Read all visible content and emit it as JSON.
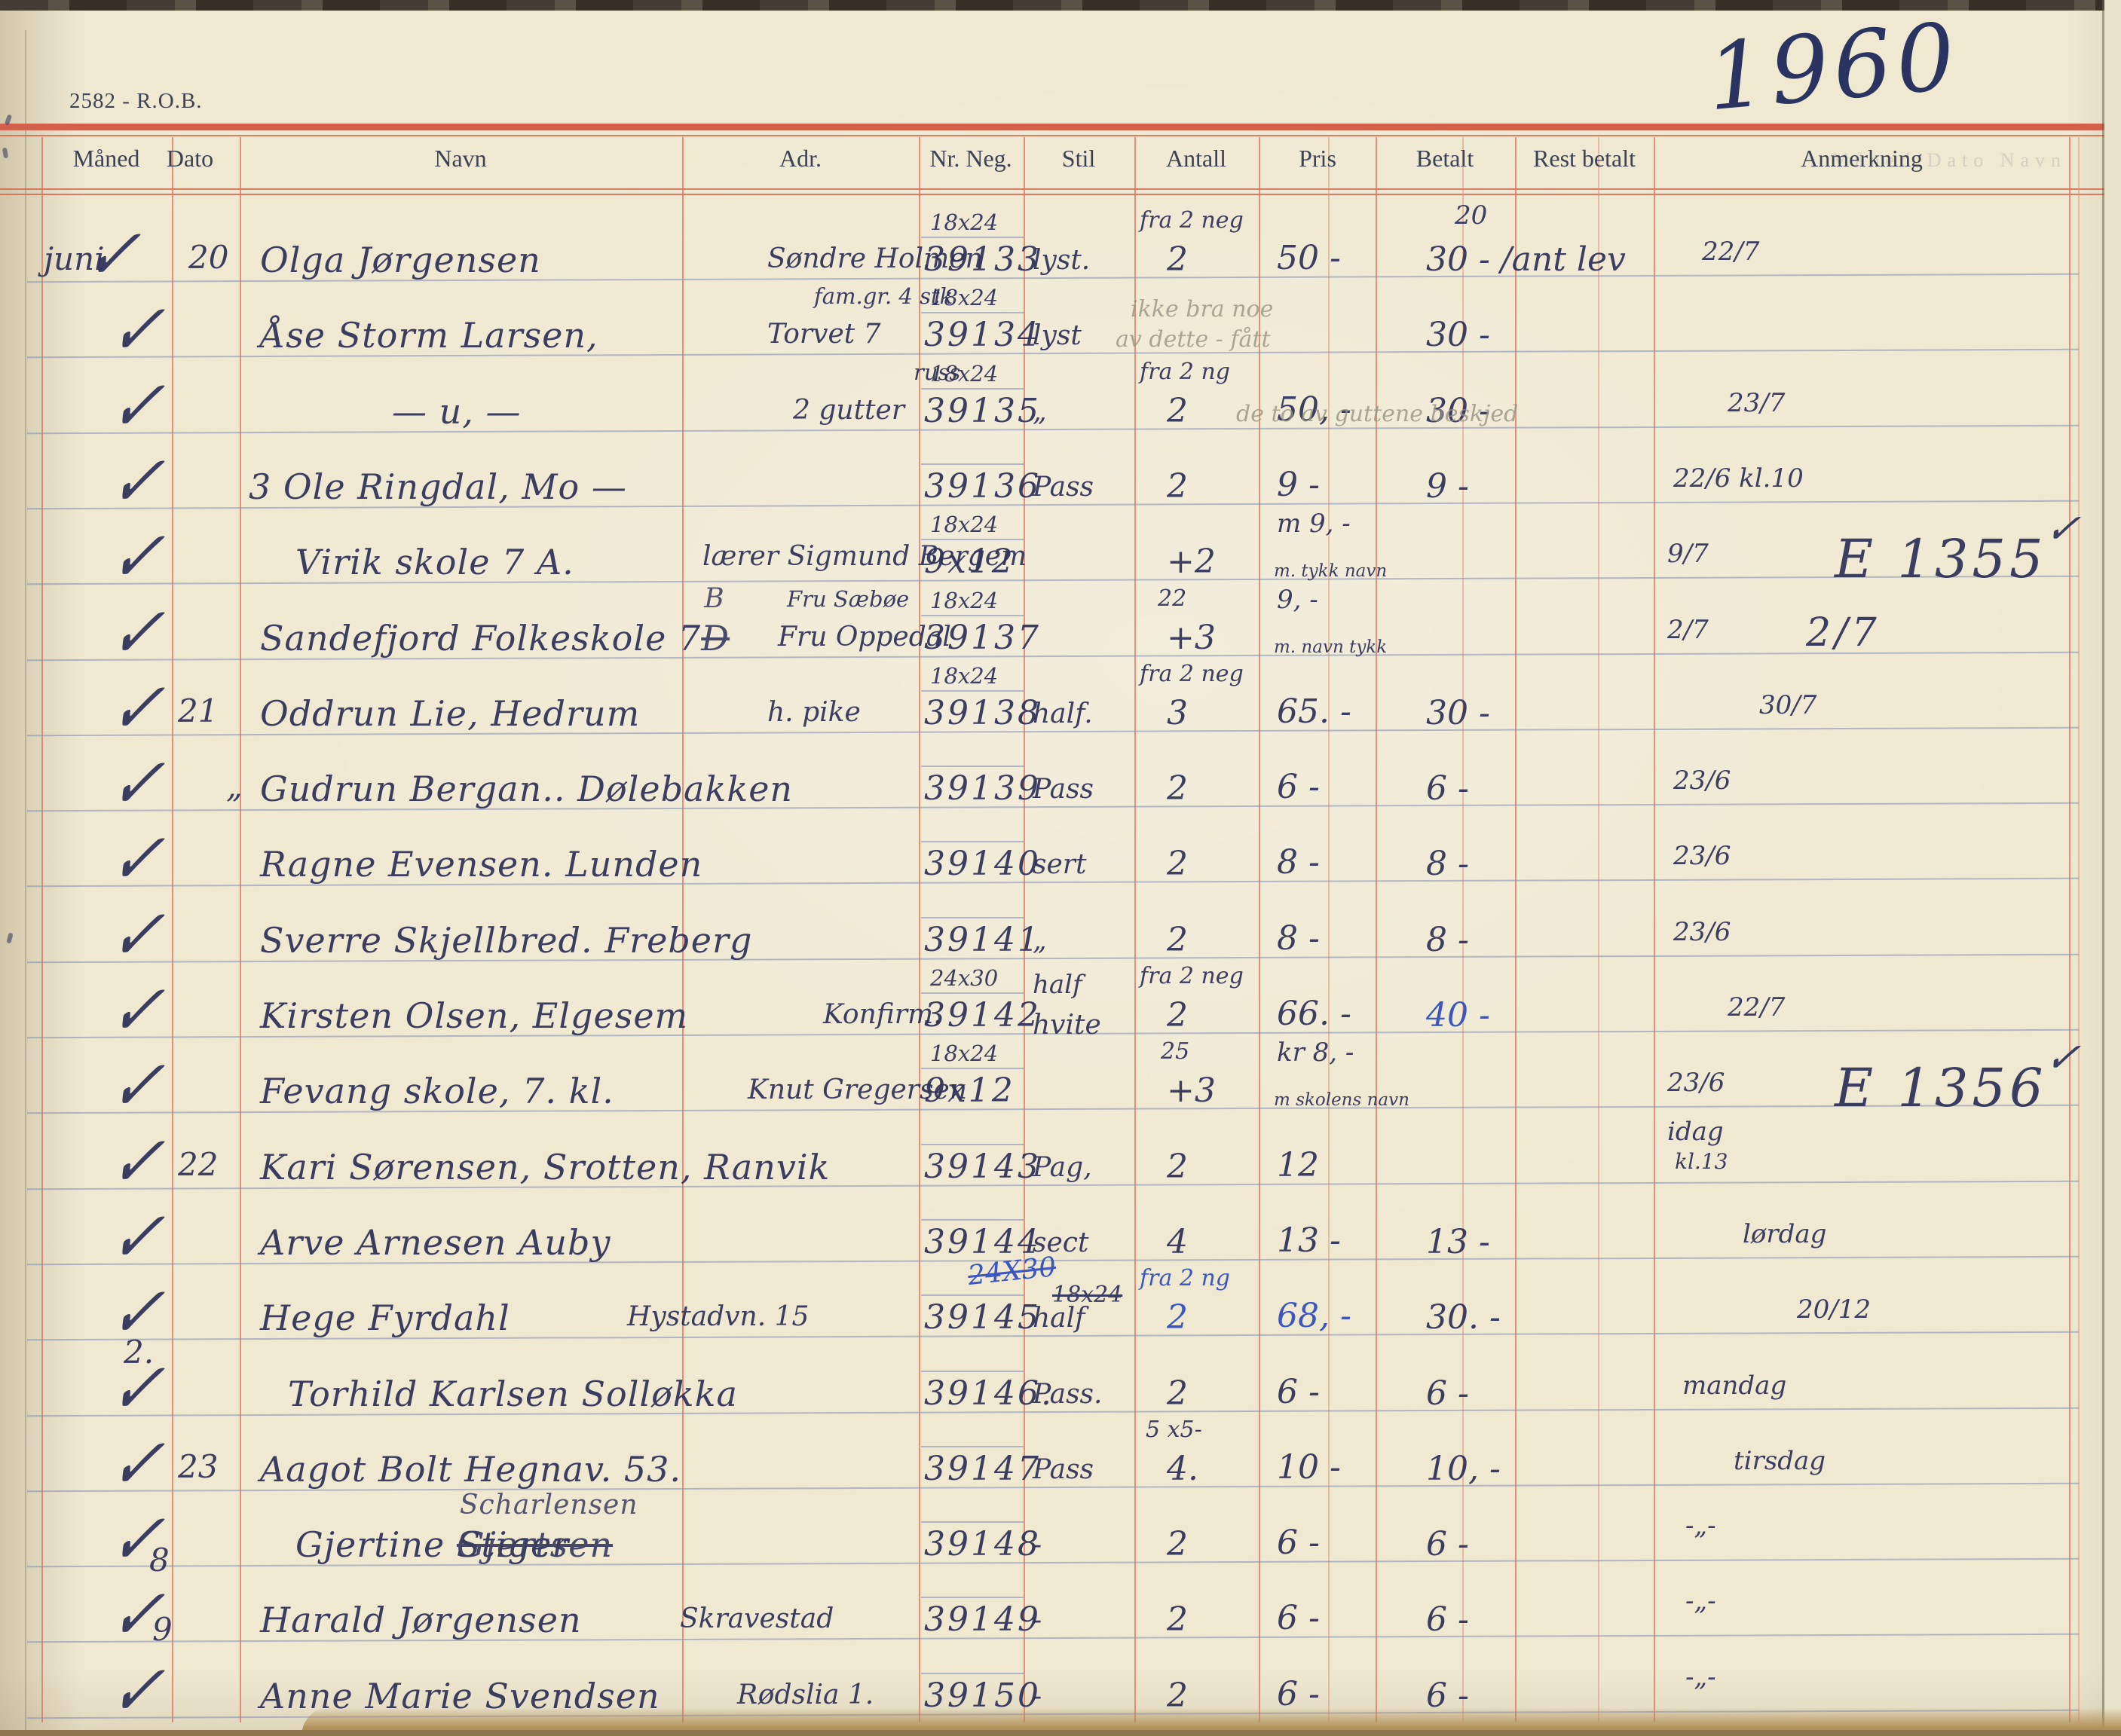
{
  "page": {
    "book_code": "2582 - R.O.B.",
    "year": "1960",
    "ghost": "Måned  Dato   Navn"
  },
  "header": {
    "columns": [
      "Måned",
      "Dato",
      "Navn",
      "Adr.",
      "Nr. Neg.",
      "Stil",
      "Antall",
      "Pris",
      "Betalt",
      "Rest betalt",
      "Anmerkning"
    ]
  },
  "colors": {
    "ink_main": "#2e3158",
    "ink_blue": "#2f4bc0",
    "pencil": "#97948a",
    "rule_red": "#d2604a",
    "rule_blue": "#7d8caf",
    "paper": "#efe9d2"
  },
  "rows": [
    {
      "check": "✓",
      "maaned": "juni",
      "dato": "20",
      "navn": "Olga Jørgensen",
      "adr": "Søndre Holmen",
      "neg_top": "18x24",
      "neg": "39133",
      "stil": "lyst.",
      "antall_top": "fra 2 neg",
      "antall": "2",
      "pris": "50  -",
      "betalt_top": "20",
      "betalt": "30  - /ant lev",
      "anm": "22/7"
    },
    {
      "check": "✓",
      "navn": "Åse Storm Larsen,",
      "adr_top": "fam.gr. 4 stk",
      "adr": "Torvet 7",
      "neg_top": "18x24",
      "neg": "39134",
      "stil": "lyst",
      "pencil": "ikke bra noe",
      "pencil2": "av dette - fått",
      "betalt": "30  -"
    },
    {
      "check": "✓",
      "navn": "— u, —",
      "adr_top": "russ",
      "adr": "2 gutter",
      "neg_top": "18x24",
      "neg": "39135",
      "stil": "„",
      "antall_top": "fra 2 ng",
      "antall": "2",
      "pris": "50,  -",
      "betalt": "30  -",
      "pencil": "de to av guttene beskjed",
      "anm": "23/7"
    },
    {
      "check": "✓",
      "navn": "3 Ole Ringdal, Mo —",
      "neg": "39136",
      "stil": "Pass",
      "antall": "2",
      "pris": "9  -",
      "betalt": "9  -",
      "anm": "22/6 kl.10"
    },
    {
      "check": "✓",
      "navn": "Virik skole 7 A.",
      "adr": "lærer Sigmund Bergem",
      "neg_top": "18x24",
      "neg": "9x12",
      "antall": "+2",
      "pris_top": "m 9, -",
      "pris_small": "m. tykk navn",
      "anm": "9/7",
      "anm_big": "E 1355",
      "margin_check": "✓"
    },
    {
      "check": "✓",
      "navn": "Sandefjord Folkeskole 7",
      "navn_crossed": "D",
      "navn_over": "B",
      "adr_top": "Fru Sæbøe",
      "adr": "Fru Oppedal",
      "neg_top": "18x24",
      "neg": "39137",
      "antall_top": "22",
      "antall": "+3",
      "pris_top": "9,  -",
      "pris_small": "m. navn tykk",
      "anm": "2/7",
      "anm_big": "2/7"
    },
    {
      "check": "✓",
      "dato": "21",
      "navn": "Oddrun Lie, Hedrum",
      "adr": "h. pike",
      "neg_top": "18x24",
      "neg": "39138",
      "stil": "half.",
      "antall_top": "fra 2 neg",
      "antall": "3",
      "pris": "65.  -",
      "betalt": "30  -",
      "anm": "30/7"
    },
    {
      "check": "✓",
      "dato": "„",
      "navn": "Gudrun Bergan.. Dølebakken",
      "neg": "39139",
      "stil": "Pass",
      "antall": "2",
      "pris": "6  -",
      "betalt": "6  -",
      "anm": "23/6"
    },
    {
      "check": "✓",
      "navn": "Ragne Evensen. Lunden",
      "neg": "39140",
      "stil": "sert",
      "antall": "2",
      "pris": "8  -",
      "betalt": "8  -",
      "anm": "23/6"
    },
    {
      "check": "✓",
      "navn": "Sverre Skjellbred. Freberg",
      "neg": "39141",
      "stil": "„",
      "antall": "2",
      "pris": "8  -",
      "betalt": "8  -",
      "anm": "23/6"
    },
    {
      "check": "✓",
      "navn": "Kirsten Olsen, Elgesem",
      "adr": "Konfirm.",
      "neg_top": "24x30",
      "neg": "39142",
      "stil_top": "half",
      "stil": "hvite",
      "antall_top": "fra 2 neg",
      "antall": "2",
      "pris": "66.  -",
      "betalt_blue": "40  -",
      "anm": "22/7"
    },
    {
      "check": "✓",
      "navn": "Fevang skole, 7. kl.",
      "adr": "Knut Gregersen",
      "neg_top": "18x24",
      "neg": "9x12",
      "antall_top": "25",
      "antall": "+3",
      "pris_top": "kr 8, -",
      "pris_small": "m skolens navn",
      "anm": "23/6",
      "anm_big": "E 1356",
      "margin_check": "✓"
    },
    {
      "check": "✓",
      "dato": "22",
      "navn": "Kari Sørensen, Srotten, Ranvik",
      "neg": "39143",
      "stil": "Pag,",
      "antall": "2",
      "pris": "12",
      "anm": "idag",
      "anm2": "kl.13"
    },
    {
      "check": "✓",
      "navn": "Arve Arnesen Auby",
      "neg": "39144",
      "neg_blue": "24X30",
      "neg_crossed": "18x24",
      "stil": "sect",
      "antall": "4",
      "pris": "13  -",
      "betalt": "13  -",
      "anm": "lørdag"
    },
    {
      "check": "✓",
      "navn": "Hege Fyrdahl",
      "adr": "Hystadvn. 15",
      "neg": "39145",
      "stil": "half",
      "antall_top_blue": "fra 2 ng",
      "antall_blue": "2",
      "pris_blue": "68,  -",
      "betalt": "30.  -",
      "anm": "20/12"
    },
    {
      "check": "✓",
      "dato": "2.",
      "navn": "Torhild Karlsen Solløkka",
      "neg": "39146.",
      "stil": "Pass.",
      "antall": "2",
      "pris": "6  -",
      "betalt": "6  -",
      "anm": "mandag"
    },
    {
      "check": "✓",
      "dato": "23",
      "navn": "Aagot Bolt Hegnav. 53.",
      "neg": "39147",
      "stil": "Pass",
      "antall_top": "5 x5-",
      "antall": "4.",
      "pris": "10  -",
      "betalt": "10,  -",
      "anm": "tirsdag"
    },
    {
      "check": "✓",
      "dato": "8",
      "navn": "Gjertine ",
      "navn_crossed": "Gjertsen",
      "navn_over": "Scharlensen",
      "navn_post": "  Stiger",
      "neg": "39148",
      "stil": "-",
      "antall": "2",
      "pris": "6  -",
      "betalt": "6  -",
      "anm": "-„-"
    },
    {
      "check": "✓",
      "dato": "9",
      "navn": "Harald Jørgensen",
      "adr": "Skravestad",
      "neg": "39149",
      "stil": "-",
      "antall": "2",
      "pris": "6  -",
      "betalt": "6  -",
      "anm": "-„-"
    },
    {
      "check": "✓",
      "navn": "Anne Marie Svendsen",
      "adr": "Rødslia 1.",
      "neg": "39150",
      "stil": "-",
      "antall": "2",
      "pris": "6  -",
      "betalt": "6  -",
      "anm": "-„-"
    }
  ]
}
